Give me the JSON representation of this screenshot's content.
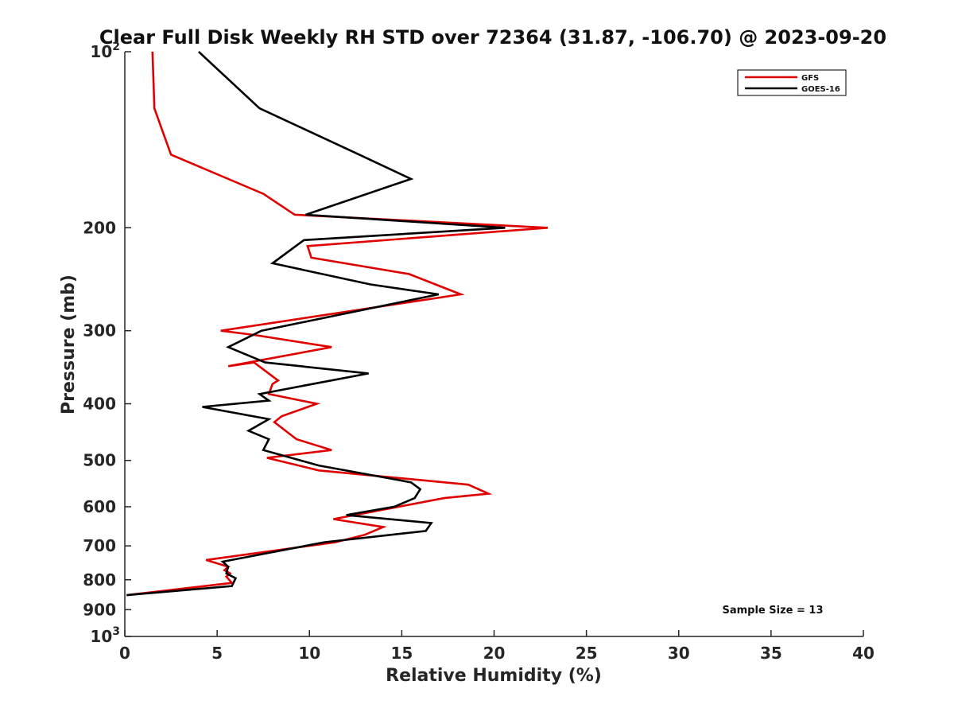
{
  "chart_data": {
    "type": "line",
    "title": "Clear Full Disk Weekly RH STD over 72364 (31.87, -106.70) @ 2023-09-20",
    "xlabel": "Relative Humidity (%)",
    "ylabel": "Pressure (mb)",
    "xlim": [
      0,
      40
    ],
    "ylim": [
      100,
      1000
    ],
    "y_scale": "log",
    "y_reversed": true,
    "grid": false,
    "legend_position": "top-right",
    "x_ticks": [
      {
        "value": 0,
        "label": "0"
      },
      {
        "value": 5,
        "label": "5"
      },
      {
        "value": 10,
        "label": "10"
      },
      {
        "value": 15,
        "label": "15"
      },
      {
        "value": 20,
        "label": "20"
      },
      {
        "value": 25,
        "label": "25"
      },
      {
        "value": 30,
        "label": "30"
      },
      {
        "value": 35,
        "label": "35"
      },
      {
        "value": 40,
        "label": "40"
      }
    ],
    "y_ticks": [
      {
        "value": 100,
        "base": "10",
        "exp": "2"
      },
      {
        "value": 200,
        "label": "200"
      },
      {
        "value": 300,
        "label": "300"
      },
      {
        "value": 400,
        "label": "400"
      },
      {
        "value": 500,
        "label": "500"
      },
      {
        "value": 600,
        "label": "600"
      },
      {
        "value": 700,
        "label": "700"
      },
      {
        "value": 800,
        "label": "800"
      },
      {
        "value": 900,
        "label": "900"
      },
      {
        "value": 1000,
        "base": "10",
        "exp": "3"
      }
    ],
    "series": [
      {
        "name": "GFS",
        "color": "#e00000",
        "points": [
          [
            1.5,
            100
          ],
          [
            1.6,
            125
          ],
          [
            2.5,
            150
          ],
          [
            7.5,
            175
          ],
          [
            9.2,
            190
          ],
          [
            22.9,
            200
          ],
          [
            9.9,
            215
          ],
          [
            10.1,
            225
          ],
          [
            15.4,
            240
          ],
          [
            18.2,
            260
          ],
          [
            5.2,
            300
          ],
          [
            7.0,
            305
          ],
          [
            11.2,
            320
          ],
          [
            5.6,
            345
          ],
          [
            7.0,
            340
          ],
          [
            8.3,
            365
          ],
          [
            8.0,
            370
          ],
          [
            7.8,
            385
          ],
          [
            10.4,
            400
          ],
          [
            8.5,
            420
          ],
          [
            8.1,
            430
          ],
          [
            9.3,
            460
          ],
          [
            11.2,
            480
          ],
          [
            7.7,
            495
          ],
          [
            10.5,
            520
          ],
          [
            18.6,
            550
          ],
          [
            19.7,
            570
          ],
          [
            17.3,
            580
          ],
          [
            11.3,
            630
          ],
          [
            14.0,
            650
          ],
          [
            13.0,
            670
          ],
          [
            11.4,
            690
          ],
          [
            4.4,
            740
          ],
          [
            5.6,
            760
          ],
          [
            5.4,
            770
          ],
          [
            5.7,
            780
          ],
          [
            5.5,
            790
          ],
          [
            5.8,
            810
          ],
          [
            0.1,
            850
          ]
        ]
      },
      {
        "name": "GOES-16",
        "color": "#000000",
        "points": [
          [
            4.0,
            100
          ],
          [
            7.3,
            125
          ],
          [
            12.7,
            150
          ],
          [
            15.5,
            165
          ],
          [
            9.8,
            190
          ],
          [
            20.6,
            200
          ],
          [
            9.7,
            210
          ],
          [
            8.0,
            230
          ],
          [
            13.3,
            250
          ],
          [
            17.0,
            260
          ],
          [
            7.4,
            300
          ],
          [
            5.6,
            320
          ],
          [
            7.6,
            340
          ],
          [
            13.2,
            355
          ],
          [
            7.3,
            385
          ],
          [
            7.8,
            395
          ],
          [
            4.2,
            405
          ],
          [
            7.8,
            425
          ],
          [
            6.7,
            445
          ],
          [
            7.8,
            460
          ],
          [
            7.5,
            480
          ],
          [
            10.5,
            510
          ],
          [
            15.5,
            545
          ],
          [
            16.0,
            560
          ],
          [
            15.7,
            580
          ],
          [
            14.6,
            600
          ],
          [
            12.0,
            620
          ],
          [
            16.6,
            640
          ],
          [
            16.3,
            660
          ],
          [
            10.8,
            690
          ],
          [
            5.3,
            745
          ],
          [
            5.6,
            760
          ],
          [
            5.5,
            780
          ],
          [
            6.0,
            795
          ],
          [
            5.8,
            820
          ],
          [
            0.1,
            850
          ]
        ]
      }
    ],
    "annotation": "Sample Size = 13"
  }
}
